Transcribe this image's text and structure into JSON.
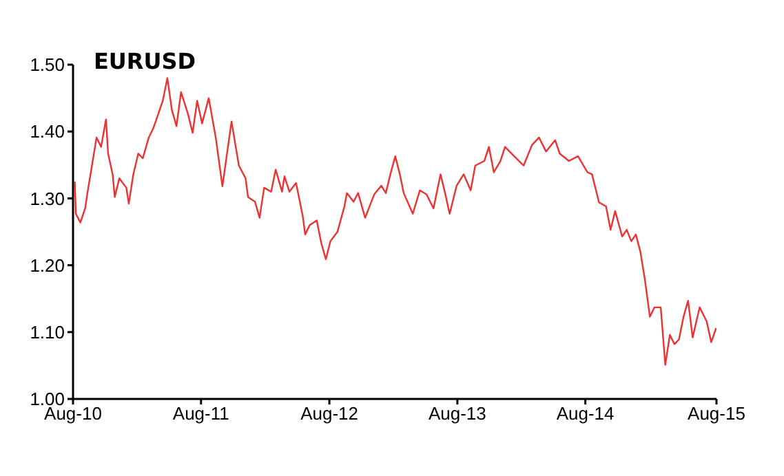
{
  "chart_data": {
    "type": "line",
    "title": "EURUSD",
    "x": [
      "2010-08-06",
      "2010-08-09",
      "2010-08-22",
      "2010-09-05",
      "2010-09-11",
      "2010-09-24",
      "2010-10-07",
      "2010-10-20",
      "2010-11-03",
      "2010-11-09",
      "2010-11-22",
      "2010-11-28",
      "2010-12-11",
      "2010-12-31",
      "2011-01-07",
      "2011-01-20",
      "2011-02-03",
      "2011-02-16",
      "2011-03-05",
      "2011-03-18",
      "2011-04-01",
      "2011-04-14",
      "2011-04-27",
      "2011-05-10",
      "2011-05-23",
      "2011-06-05",
      "2011-06-25",
      "2011-07-08",
      "2011-07-21",
      "2011-08-04",
      "2011-08-23",
      "2011-09-12",
      "2011-10-01",
      "2011-10-27",
      "2011-11-17",
      "2011-12-06",
      "2011-12-13",
      "2012-01-02",
      "2012-01-15",
      "2012-01-28",
      "2012-02-17",
      "2012-03-01",
      "2012-03-19",
      "2012-03-26",
      "2012-04-09",
      "2012-04-28",
      "2012-05-17",
      "2012-05-24",
      "2012-06-06",
      "2012-06-26",
      "2012-07-09",
      "2012-07-22",
      "2012-08-04",
      "2012-08-24",
      "2012-09-13",
      "2012-09-20",
      "2012-10-09",
      "2012-10-22",
      "2012-11-11",
      "2012-12-07",
      "2012-12-27",
      "2013-01-09",
      "2013-01-22",
      "2013-02-05",
      "2013-02-18",
      "2013-03-01",
      "2013-03-27",
      "2013-04-16",
      "2013-05-05",
      "2013-05-25",
      "2013-06-14",
      "2013-06-27",
      "2013-07-10",
      "2013-07-30",
      "2013-08-19",
      "2013-09-08",
      "2013-09-21",
      "2013-10-17",
      "2013-10-30",
      "2013-11-13",
      "2013-12-02",
      "2013-12-15",
      "2014-01-10",
      "2014-02-06",
      "2014-03-02",
      "2014-03-22",
      "2014-04-11",
      "2014-05-07",
      "2014-05-20",
      "2014-06-15",
      "2014-07-11",
      "2014-08-07",
      "2014-08-20",
      "2014-09-09",
      "2014-09-29",
      "2014-10-12",
      "2014-10-25",
      "2014-11-14",
      "2014-11-27",
      "2014-12-10",
      "2014-12-23",
      "2015-01-05",
      "2015-01-18",
      "2015-02-01",
      "2015-02-14",
      "2015-03-04",
      "2015-03-17",
      "2015-03-30",
      "2015-04-12",
      "2015-04-25",
      "2015-05-08",
      "2015-05-21",
      "2015-06-03",
      "2015-06-23",
      "2015-07-13",
      "2015-07-26",
      "2015-08-09"
    ],
    "series": [
      {
        "color": "#ee3030",
        "values": [
          1.325,
          1.277,
          1.264,
          1.286,
          1.308,
          1.349,
          1.391,
          1.377,
          1.418,
          1.367,
          1.336,
          1.302,
          1.33,
          1.316,
          1.292,
          1.336,
          1.367,
          1.36,
          1.391,
          1.405,
          1.426,
          1.446,
          1.48,
          1.432,
          1.408,
          1.459,
          1.426,
          1.398,
          1.446,
          1.412,
          1.45,
          1.391,
          1.318,
          1.415,
          1.349,
          1.33,
          1.302,
          1.295,
          1.271,
          1.316,
          1.31,
          1.343,
          1.31,
          1.333,
          1.31,
          1.323,
          1.274,
          1.246,
          1.26,
          1.267,
          1.233,
          1.209,
          1.236,
          1.25,
          1.288,
          1.308,
          1.295,
          1.308,
          1.271,
          1.306,
          1.319,
          1.308,
          1.336,
          1.363,
          1.336,
          1.308,
          1.277,
          1.312,
          1.306,
          1.285,
          1.336,
          1.308,
          1.277,
          1.319,
          1.336,
          1.312,
          1.349,
          1.356,
          1.377,
          1.339,
          1.356,
          1.377,
          1.363,
          1.349,
          1.38,
          1.391,
          1.37,
          1.387,
          1.367,
          1.356,
          1.363,
          1.339,
          1.336,
          1.294,
          1.288,
          1.253,
          1.281,
          1.243,
          1.253,
          1.236,
          1.246,
          1.22,
          1.178,
          1.123,
          1.137,
          1.137,
          1.051,
          1.096,
          1.082,
          1.089,
          1.123,
          1.147,
          1.092,
          1.137,
          1.116,
          1.085,
          1.106
        ]
      }
    ],
    "xlim": [
      "2010-08-01",
      "2015-08-10"
    ],
    "xticks": [
      {
        "value": "2010-08-01",
        "label": "Aug-10"
      },
      {
        "value": "2011-08-01",
        "label": "Aug-11"
      },
      {
        "value": "2012-08-01",
        "label": "Aug-12"
      },
      {
        "value": "2013-08-01",
        "label": "Aug-13"
      },
      {
        "value": "2014-08-01",
        "label": "Aug-14"
      },
      {
        "value": "2015-08-10",
        "label": "Aug-15"
      }
    ],
    "ylim": [
      1,
      1.5
    ],
    "yticks": [
      {
        "value": 1,
        "label": "1.00"
      },
      {
        "value": 1.1,
        "label": "1.10"
      },
      {
        "value": 1.2,
        "label": "1.20"
      },
      {
        "value": 1.3,
        "label": "1.30"
      },
      {
        "value": 1.4,
        "label": "1.40"
      },
      {
        "value": 1.5,
        "label": "1.50"
      }
    ],
    "grid": false,
    "legend": false,
    "marker": "none",
    "line_style": "solid"
  }
}
